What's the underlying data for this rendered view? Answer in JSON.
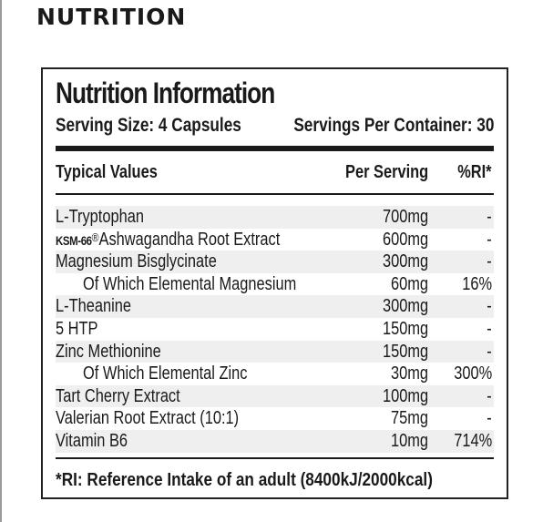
{
  "page": {
    "heading": "NUTRITION"
  },
  "panel": {
    "title": "Nutrition Information",
    "serving_size": "Serving Size: 4 Capsules",
    "servings_per_container": "Servings Per Container: 30",
    "headers": {
      "typical": "Typical Values",
      "per_serving": "Per Serving",
      "ri": "%RI*"
    },
    "rows": [
      {
        "prefix": "",
        "name": "L-Tryptophan",
        "amount": "700mg",
        "ri": "-",
        "sub": false
      },
      {
        "prefix": "KSM-66",
        "name": "Ashwagandha Root Extract",
        "amount": "600mg",
        "ri": "-",
        "sub": false
      },
      {
        "prefix": "",
        "name": "Magnesium Bisglycinate",
        "amount": "300mg",
        "ri": "-",
        "sub": false
      },
      {
        "prefix": "",
        "name": "Of Which Elemental Magnesium",
        "amount": "60mg",
        "ri": "16%",
        "sub": true
      },
      {
        "prefix": "",
        "name": "L-Theanine",
        "amount": "300mg",
        "ri": "-",
        "sub": false
      },
      {
        "prefix": "",
        "name": "5 HTP",
        "amount": "150mg",
        "ri": "-",
        "sub": false
      },
      {
        "prefix": "",
        "name": "Zinc Methionine",
        "amount": "150mg",
        "ri": "-",
        "sub": false
      },
      {
        "prefix": "",
        "name": "Of Which Elemental Zinc",
        "amount": "30mg",
        "ri": "300%",
        "sub": true
      },
      {
        "prefix": "",
        "name": "Tart Cherry Extract",
        "amount": "100mg",
        "ri": "-",
        "sub": false
      },
      {
        "prefix": "",
        "name": "Valerian Root Extract (10:1)",
        "amount": "75mg",
        "ri": "-",
        "sub": false
      },
      {
        "prefix": "",
        "name": "Vitamin B6",
        "amount": "10mg",
        "ri": "714%",
        "sub": false
      }
    ],
    "footnote": "*RI: Reference Intake of an adult (8400kJ/2000kcal)"
  },
  "colors": {
    "text": "#1a1a1a",
    "row_shade": "#efefef",
    "border": "#222222"
  }
}
